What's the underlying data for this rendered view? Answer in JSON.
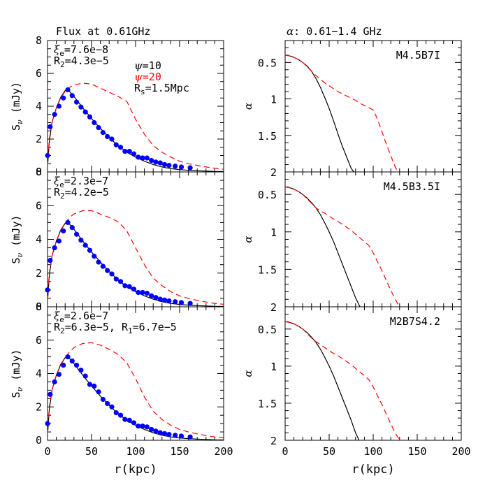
{
  "left_title": "Flux at 0.61GHz",
  "right_title_sym": "α",
  "right_title_rest": ": 0.61−1.4 GHz",
  "colors": {
    "model1": "#000000",
    "model2": "#ff0000",
    "points": "#0000ff"
  },
  "chart_data": [
    {
      "type": "scatter",
      "panel": "flux-top",
      "ylabel_main": "S",
      "ylabel_sub": "ν",
      "ylabel_unit": " (mJy)",
      "ylim": [
        0,
        8
      ],
      "xlim": [
        0,
        200
      ],
      "yticks": [
        "0",
        "2",
        "4",
        "6",
        "8"
      ],
      "annotations": [
        {
          "sym": "ξ",
          "sub": "e",
          "rest": "=7.6e−8"
        },
        {
          "sym": "",
          "pre": "R",
          "sub": "2",
          "rest": "=4.3e−5"
        }
      ],
      "legend": [
        {
          "sym": "ψ",
          "rest": "=10",
          "color": "#000000"
        },
        {
          "sym": "ψ",
          "rest": "=20",
          "color": "#ff0000"
        },
        {
          "sym": "",
          "pre": "R",
          "sub": "s",
          "rest": "=1.5Mpc",
          "color": "#000000"
        }
      ],
      "points": {
        "x": [
          0,
          3,
          8,
          13,
          18,
          23,
          28,
          33,
          38,
          43,
          48,
          53,
          58,
          63,
          68,
          73,
          78,
          83,
          88,
          93,
          98,
          103,
          108,
          113,
          118,
          123,
          128,
          133,
          138,
          145,
          152,
          162
        ],
        "y": [
          1.0,
          2.75,
          3.5,
          4.0,
          4.5,
          5.0,
          4.65,
          4.25,
          3.95,
          3.65,
          3.35,
          3.0,
          2.7,
          2.4,
          2.15,
          2.0,
          1.65,
          1.5,
          1.25,
          1.25,
          1.1,
          0.9,
          0.85,
          0.85,
          0.7,
          0.6,
          0.55,
          0.45,
          0.4,
          0.35,
          0.3,
          0.25
        ]
      },
      "series": [
        {
          "name": "ψ=10",
          "color": "#000000",
          "dash": false,
          "x": [
            0,
            2,
            5,
            10,
            15,
            20,
            25,
            30,
            40,
            50,
            60,
            70,
            80,
            90,
            100,
            110,
            120,
            130,
            140,
            150,
            160,
            170,
            180,
            190,
            200
          ],
          "y": [
            0.3,
            1.8,
            3.0,
            3.9,
            4.55,
            4.95,
            4.9,
            4.6,
            3.9,
            3.25,
            2.65,
            2.1,
            1.6,
            1.2,
            0.9,
            0.65,
            0.45,
            0.3,
            0.2,
            0.14,
            0.1,
            0.07,
            0.05,
            0.03,
            0.02
          ]
        },
        {
          "name": "ψ=20",
          "color": "#ff0000",
          "dash": true,
          "x": [
            0,
            2,
            5,
            10,
            15,
            20,
            25,
            30,
            40,
            50,
            60,
            70,
            80,
            90,
            100,
            110,
            120,
            130,
            140,
            150,
            160,
            170,
            180,
            190,
            200
          ],
          "y": [
            0.3,
            2.0,
            3.0,
            3.9,
            4.5,
            4.9,
            5.15,
            5.3,
            5.4,
            5.35,
            5.1,
            4.85,
            4.6,
            4.3,
            3.2,
            2.3,
            1.6,
            1.2,
            0.9,
            0.65,
            0.5,
            0.4,
            0.3,
            0.22,
            0.16
          ]
        }
      ]
    },
    {
      "type": "scatter",
      "panel": "flux-mid",
      "ylabel_main": "S",
      "ylabel_sub": "ν",
      "ylabel_unit": " (mJy)",
      "ylim": [
        0,
        8
      ],
      "xlim": [
        0,
        200
      ],
      "yticks": [
        "0",
        "2",
        "4",
        "6",
        "8"
      ],
      "annotations": [
        {
          "sym": "ξ",
          "sub": "e",
          "rest": "=2.3e−7"
        },
        {
          "sym": "",
          "pre": "R",
          "sub": "2",
          "rest": "=4.2e−5"
        }
      ],
      "legend": [],
      "points": {
        "x": [
          0,
          3,
          8,
          13,
          18,
          23,
          28,
          33,
          38,
          43,
          48,
          53,
          58,
          63,
          68,
          73,
          78,
          83,
          88,
          93,
          98,
          103,
          108,
          113,
          118,
          123,
          128,
          133,
          138,
          145,
          152,
          162
        ],
        "y": [
          1.0,
          2.75,
          3.5,
          3.9,
          4.5,
          5.0,
          4.7,
          4.3,
          3.95,
          3.65,
          3.35,
          3.0,
          2.65,
          2.4,
          2.15,
          1.95,
          1.65,
          1.5,
          1.25,
          1.2,
          1.05,
          0.85,
          0.85,
          0.8,
          0.65,
          0.55,
          0.45,
          0.4,
          0.35,
          0.3,
          0.25,
          0.2
        ]
      },
      "series": [
        {
          "name": "ψ=10",
          "color": "#000000",
          "dash": false,
          "x": [
            0,
            2,
            5,
            10,
            15,
            20,
            25,
            30,
            40,
            50,
            60,
            70,
            80,
            90,
            100,
            110,
            120,
            130,
            140,
            150,
            160,
            170,
            180,
            190,
            200
          ],
          "y": [
            0.3,
            1.8,
            3.0,
            3.9,
            4.55,
            4.95,
            4.9,
            4.6,
            3.9,
            3.25,
            2.65,
            2.1,
            1.6,
            1.2,
            0.9,
            0.65,
            0.45,
            0.3,
            0.2,
            0.14,
            0.1,
            0.07,
            0.05,
            0.03,
            0.02
          ]
        },
        {
          "name": "ψ=20",
          "color": "#ff0000",
          "dash": true,
          "x": [
            0,
            2,
            5,
            10,
            15,
            20,
            25,
            30,
            40,
            50,
            60,
            70,
            80,
            90,
            100,
            110,
            120,
            130,
            140,
            150,
            160,
            170,
            180,
            190,
            200
          ],
          "y": [
            0.3,
            2.0,
            3.0,
            3.9,
            4.5,
            4.95,
            5.3,
            5.5,
            5.7,
            5.7,
            5.5,
            5.3,
            5.05,
            4.5,
            3.5,
            2.5,
            1.7,
            1.25,
            0.9,
            0.65,
            0.5,
            0.38,
            0.28,
            0.2,
            0.15
          ]
        }
      ]
    },
    {
      "type": "scatter",
      "panel": "flux-bot",
      "ylabel_main": "S",
      "ylabel_sub": "ν",
      "ylabel_unit": " (mJy)",
      "ylim": [
        0,
        8
      ],
      "xlim": [
        0,
        200
      ],
      "yticks": [
        "0",
        "2",
        "4",
        "6",
        "8"
      ],
      "xlabel": "r(kpc)",
      "xticks": [
        "0",
        "50",
        "100",
        "150",
        "200"
      ],
      "annotations": [
        {
          "sym": "ξ",
          "sub": "e",
          "rest": "=2.6e−7"
        },
        {
          "sym": "",
          "pre": "R",
          "sub": "2",
          "rest": "=6.3e−5,   ",
          "pre2": "R",
          "sub2": "1",
          "rest2": "=6.7e−5"
        }
      ],
      "legend": [],
      "points": {
        "x": [
          0,
          3,
          8,
          13,
          18,
          23,
          28,
          33,
          38,
          43,
          48,
          53,
          58,
          63,
          68,
          73,
          78,
          83,
          88,
          93,
          98,
          103,
          108,
          113,
          118,
          123,
          128,
          133,
          138,
          145,
          152,
          162
        ],
        "y": [
          1.0,
          2.75,
          3.5,
          3.95,
          4.5,
          5.0,
          4.75,
          4.5,
          4.2,
          3.85,
          3.35,
          3.25,
          2.9,
          2.45,
          2.2,
          2.0,
          1.65,
          1.5,
          1.25,
          1.2,
          1.05,
          0.85,
          0.85,
          0.8,
          0.65,
          0.55,
          0.45,
          0.4,
          0.35,
          0.3,
          0.25,
          0.2
        ]
      },
      "series": [
        {
          "name": "ψ=10",
          "color": "#000000",
          "dash": false,
          "x": [
            0,
            2,
            5,
            10,
            15,
            20,
            25,
            30,
            40,
            50,
            60,
            70,
            80,
            90,
            100,
            110,
            120,
            130,
            140,
            150,
            160,
            170,
            180,
            190,
            200
          ],
          "y": [
            0.3,
            1.8,
            3.0,
            3.9,
            4.55,
            4.95,
            4.9,
            4.6,
            3.9,
            3.25,
            2.65,
            2.1,
            1.6,
            1.2,
            0.9,
            0.65,
            0.45,
            0.3,
            0.2,
            0.14,
            0.1,
            0.07,
            0.05,
            0.03,
            0.02
          ]
        },
        {
          "name": "ψ=20",
          "color": "#ff0000",
          "dash": true,
          "x": [
            0,
            2,
            5,
            10,
            15,
            20,
            25,
            30,
            40,
            50,
            60,
            70,
            80,
            90,
            100,
            110,
            120,
            130,
            140,
            150,
            160,
            170,
            180,
            190,
            200
          ],
          "y": [
            0.3,
            2.0,
            3.0,
            3.9,
            4.5,
            4.95,
            5.3,
            5.55,
            5.8,
            5.85,
            5.7,
            5.45,
            5.15,
            4.65,
            3.7,
            2.6,
            1.75,
            1.25,
            0.9,
            0.65,
            0.5,
            0.38,
            0.28,
            0.2,
            0.15
          ]
        }
      ]
    },
    {
      "type": "line",
      "panel": "alpha-top",
      "ylabel": "α",
      "ylim": [
        0.2,
        2.0
      ],
      "inverted": true,
      "xlim": [
        0,
        200
      ],
      "yticks": [
        0.5,
        1.0,
        1.5,
        2.0
      ],
      "ytick_labels": [
        "0.5",
        "1",
        "1.5",
        "2"
      ],
      "label": "M4.5B7I",
      "series": [
        {
          "name": "ψ=10",
          "color": "#000000",
          "dash": false,
          "x": [
            0,
            5,
            10,
            15,
            20,
            25,
            30,
            35,
            40,
            45,
            50,
            55,
            60,
            65,
            70,
            75,
            78
          ],
          "y": [
            0.4,
            0.41,
            0.43,
            0.46,
            0.5,
            0.55,
            0.62,
            0.72,
            0.84,
            0.98,
            1.13,
            1.3,
            1.48,
            1.65,
            1.8,
            1.95,
            2.0
          ]
        },
        {
          "name": "ψ=20",
          "color": "#ff0000",
          "dash": true,
          "x": [
            0,
            5,
            10,
            15,
            20,
            25,
            30,
            35,
            40,
            45,
            50,
            55,
            60,
            65,
            70,
            75,
            80,
            85,
            90,
            95,
            100,
            105,
            110,
            115,
            120,
            125,
            128
          ],
          "y": [
            0.4,
            0.41,
            0.43,
            0.46,
            0.5,
            0.56,
            0.62,
            0.68,
            0.73,
            0.78,
            0.82,
            0.86,
            0.9,
            0.93,
            0.96,
            0.99,
            1.02,
            1.06,
            1.09,
            1.12,
            1.15,
            1.28,
            1.45,
            1.62,
            1.78,
            1.93,
            2.0
          ]
        }
      ]
    },
    {
      "type": "line",
      "panel": "alpha-mid",
      "ylabel": "α",
      "ylim": [
        0.2,
        2.0
      ],
      "inverted": true,
      "xlim": [
        0,
        200
      ],
      "yticks": [
        0.5,
        1.0,
        1.5,
        2.0
      ],
      "ytick_labels": [
        "0.5",
        "1",
        "1.5",
        "2"
      ],
      "label": "M4.5B3.5I",
      "series": [
        {
          "name": "ψ=10",
          "color": "#000000",
          "dash": false,
          "x": [
            0,
            5,
            10,
            15,
            20,
            25,
            30,
            35,
            40,
            45,
            50,
            55,
            60,
            65,
            70,
            75,
            80,
            85
          ],
          "y": [
            0.4,
            0.41,
            0.43,
            0.46,
            0.5,
            0.55,
            0.61,
            0.68,
            0.77,
            0.88,
            1.0,
            1.13,
            1.28,
            1.43,
            1.58,
            1.73,
            1.88,
            2.0
          ]
        },
        {
          "name": "ψ=20",
          "color": "#ff0000",
          "dash": true,
          "x": [
            0,
            5,
            10,
            15,
            20,
            25,
            30,
            35,
            40,
            45,
            50,
            55,
            60,
            65,
            70,
            75,
            80,
            85,
            90,
            95,
            100,
            105,
            110,
            115,
            120,
            125,
            130
          ],
          "y": [
            0.4,
            0.41,
            0.43,
            0.46,
            0.5,
            0.56,
            0.62,
            0.68,
            0.72,
            0.75,
            0.79,
            0.83,
            0.86,
            0.9,
            0.94,
            0.98,
            1.03,
            1.08,
            1.13,
            1.18,
            1.28,
            1.4,
            1.52,
            1.65,
            1.78,
            1.9,
            2.0
          ]
        }
      ]
    },
    {
      "type": "line",
      "panel": "alpha-bot",
      "ylabel": "α",
      "ylim": [
        0.2,
        2.0
      ],
      "inverted": true,
      "xlim": [
        0,
        200
      ],
      "xlabel": "r(kpc)",
      "xticks": [
        "0",
        "50",
        "100",
        "150",
        "200"
      ],
      "yticks": [
        0.5,
        1.0,
        1.5,
        2.0
      ],
      "ytick_labels": [
        "0.5",
        "1",
        "1.5",
        "2"
      ],
      "label": "M2B7S4.2",
      "series": [
        {
          "name": "ψ=10",
          "color": "#000000",
          "dash": false,
          "x": [
            0,
            5,
            10,
            15,
            20,
            25,
            30,
            35,
            40,
            45,
            50,
            55,
            60,
            65,
            70,
            75,
            80,
            84
          ],
          "y": [
            0.4,
            0.41,
            0.43,
            0.46,
            0.5,
            0.55,
            0.61,
            0.68,
            0.77,
            0.88,
            1.0,
            1.13,
            1.28,
            1.43,
            1.58,
            1.73,
            1.9,
            2.0
          ]
        },
        {
          "name": "ψ=20",
          "color": "#ff0000",
          "dash": true,
          "x": [
            0,
            5,
            10,
            15,
            20,
            25,
            30,
            35,
            40,
            45,
            50,
            55,
            60,
            65,
            70,
            75,
            80,
            85,
            90,
            95,
            100,
            105,
            110,
            115,
            120,
            125,
            130
          ],
          "y": [
            0.4,
            0.41,
            0.43,
            0.46,
            0.5,
            0.56,
            0.62,
            0.67,
            0.71,
            0.75,
            0.79,
            0.83,
            0.86,
            0.9,
            0.94,
            0.98,
            1.03,
            1.08,
            1.13,
            1.18,
            1.28,
            1.4,
            1.52,
            1.65,
            1.78,
            1.9,
            2.0
          ]
        }
      ]
    }
  ]
}
